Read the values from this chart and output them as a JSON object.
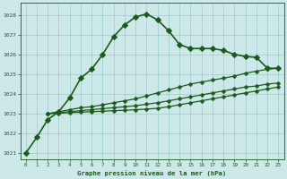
{
  "title": "Graphe pression niveau de la mer (hPa)",
  "background_color": "#cde8e8",
  "grid_color": "#99cccc",
  "line_color": "#1a5c1a",
  "xlim": [
    -0.5,
    23.5
  ],
  "ylim": [
    1020.7,
    1028.6
  ],
  "yticks": [
    1021,
    1022,
    1023,
    1024,
    1025,
    1026,
    1027,
    1028
  ],
  "xticks": [
    0,
    1,
    2,
    3,
    4,
    5,
    6,
    7,
    8,
    9,
    10,
    11,
    12,
    13,
    14,
    15,
    16,
    17,
    18,
    19,
    20,
    21,
    22,
    23
  ],
  "series": [
    {
      "x": [
        0,
        1,
        2,
        3,
        4,
        5,
        6,
        7,
        8,
        9,
        10,
        11,
        12,
        13,
        14,
        15,
        16,
        17,
        18,
        19,
        20,
        21,
        22,
        23
      ],
      "y": [
        1021.0,
        1021.8,
        1022.7,
        1023.1,
        1023.8,
        1024.8,
        1025.25,
        1026.0,
        1026.9,
        1027.5,
        1027.9,
        1028.05,
        1027.75,
        1027.2,
        1026.5,
        1026.3,
        1026.3,
        1026.3,
        1026.2,
        1026.0,
        1025.9,
        1025.85,
        1025.3,
        1025.3
      ],
      "marker": "D",
      "markersize": 3.0,
      "lw": 1.2
    },
    {
      "x": [
        2,
        3,
        4,
        5,
        6,
        7,
        8,
        9,
        10,
        11,
        12,
        13,
        14,
        15,
        16,
        17,
        18,
        19,
        20,
        21,
        22,
        23
      ],
      "y": [
        1023.0,
        1023.1,
        1023.2,
        1023.3,
        1023.35,
        1023.45,
        1023.55,
        1023.65,
        1023.75,
        1023.9,
        1024.05,
        1024.2,
        1024.35,
        1024.5,
        1024.6,
        1024.7,
        1024.8,
        1024.9,
        1025.05,
        1025.15,
        1025.25,
        1025.3
      ],
      "marker": "P",
      "markersize": 2.5,
      "lw": 0.9
    },
    {
      "x": [
        2,
        3,
        4,
        5,
        6,
        7,
        8,
        9,
        10,
        11,
        12,
        13,
        14,
        15,
        16,
        17,
        18,
        19,
        20,
        21,
        22,
        23
      ],
      "y": [
        1023.0,
        1023.05,
        1023.1,
        1023.15,
        1023.2,
        1023.25,
        1023.3,
        1023.35,
        1023.4,
        1023.48,
        1023.55,
        1023.65,
        1023.75,
        1023.85,
        1023.95,
        1024.05,
        1024.15,
        1024.25,
        1024.35,
        1024.4,
        1024.5,
        1024.55
      ],
      "marker": "P",
      "markersize": 2.5,
      "lw": 0.9
    },
    {
      "x": [
        2,
        3,
        4,
        5,
        6,
        7,
        8,
        9,
        10,
        11,
        12,
        13,
        14,
        15,
        16,
        17,
        18,
        19,
        20,
        21,
        22,
        23
      ],
      "y": [
        1023.0,
        1023.02,
        1023.05,
        1023.07,
        1023.1,
        1023.12,
        1023.15,
        1023.17,
        1023.2,
        1023.23,
        1023.27,
        1023.35,
        1023.45,
        1023.55,
        1023.65,
        1023.75,
        1023.85,
        1023.95,
        1024.05,
        1024.15,
        1024.25,
        1024.35
      ],
      "marker": "P",
      "markersize": 2.5,
      "lw": 0.9
    }
  ]
}
